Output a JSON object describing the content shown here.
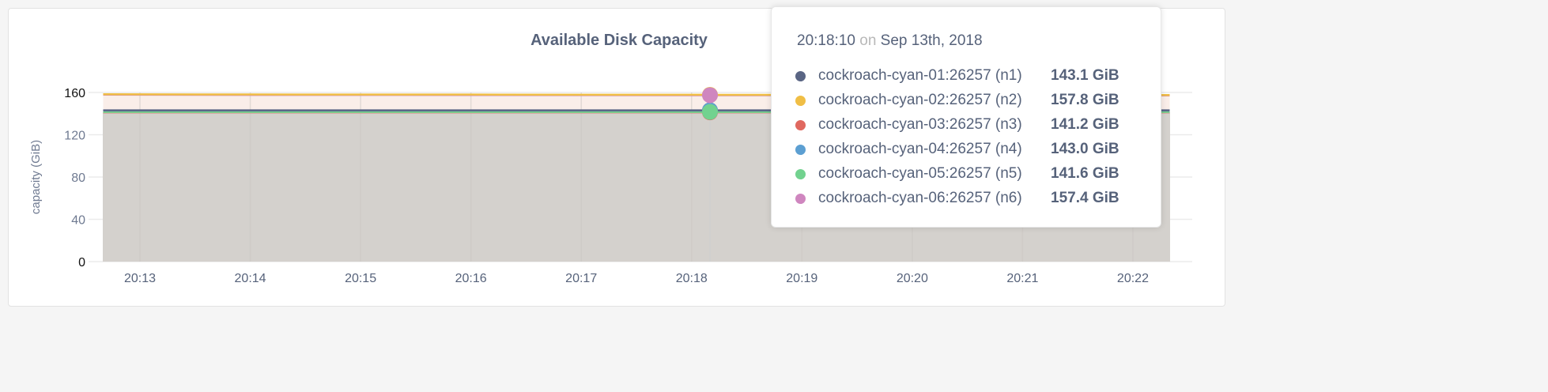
{
  "chart_data": {
    "type": "area",
    "title": "Available Disk Capacity",
    "ylabel": "capacity (GiB)",
    "xlabel": "",
    "ylim": [
      0,
      160
    ],
    "yticks": [
      "0",
      "40",
      "80",
      "120",
      "160"
    ],
    "xticks": [
      "20:13",
      "20:14",
      "20:15",
      "20:16",
      "20:17",
      "20:18",
      "20:19",
      "20:20",
      "20:21",
      "20:22"
    ],
    "grid": true,
    "x": [
      "20:12:40",
      "20:14:00",
      "20:16:00",
      "20:18:10",
      "20:20:00",
      "20:22:20"
    ],
    "series": [
      {
        "name": "cockroach-cyan-01:26257 (n1)",
        "color": "#5a6584",
        "values": [
          143.1,
          143.1,
          143.1,
          143.1,
          143.1,
          143.1
        ]
      },
      {
        "name": "cockroach-cyan-02:26257 (n2)",
        "color": "#f0be45",
        "values": [
          158.3,
          158.1,
          158.0,
          157.8,
          157.7,
          157.6
        ]
      },
      {
        "name": "cockroach-cyan-03:26257 (n3)",
        "color": "#e0685f",
        "values": [
          141.2,
          141.2,
          141.2,
          141.2,
          141.2,
          141.2
        ]
      },
      {
        "name": "cockroach-cyan-04:26257 (n4)",
        "color": "#5c9fd2",
        "values": [
          143.0,
          143.0,
          143.0,
          143.0,
          143.0,
          143.0
        ]
      },
      {
        "name": "cockroach-cyan-05:26257 (n5)",
        "color": "#72d28f",
        "values": [
          141.6,
          141.6,
          141.6,
          141.6,
          141.6,
          141.6
        ]
      },
      {
        "name": "cockroach-cyan-06:26257 (n6)",
        "color": "#cf86bf",
        "values": [
          157.9,
          157.7,
          157.6,
          157.4,
          157.3,
          157.2
        ]
      }
    ],
    "hover": {
      "time": "20:18:10",
      "on": "on",
      "date": "Sep 13th, 2018",
      "values": [
        "143.1 GiB",
        "157.8 GiB",
        "141.2 GiB",
        "143.0 GiB",
        "141.6 GiB",
        "157.4 GiB"
      ]
    }
  }
}
